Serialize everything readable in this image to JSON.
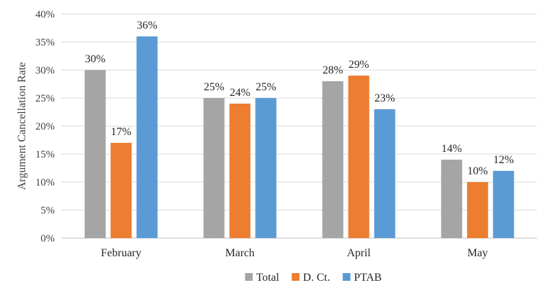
{
  "chart_data": {
    "type": "bar",
    "categories": [
      "February",
      "March",
      "April",
      "May"
    ],
    "series": [
      {
        "name": "Total",
        "color": "#a5a5a5",
        "values": [
          30,
          25,
          28,
          14
        ]
      },
      {
        "name": "D. Ct.",
        "color": "#ed7d31",
        "values": [
          17,
          24,
          29,
          10
        ]
      },
      {
        "name": "PTAB",
        "color": "#5b9bd5",
        "values": [
          36,
          25,
          23,
          12
        ]
      }
    ],
    "ylabel": "Argument Cancellation Rate",
    "ylim": [
      0,
      40
    ],
    "yticks": [
      0,
      5,
      10,
      15,
      20,
      25,
      30,
      35,
      40
    ],
    "value_suffix": "%",
    "grid": true,
    "legend_position": "bottom"
  }
}
